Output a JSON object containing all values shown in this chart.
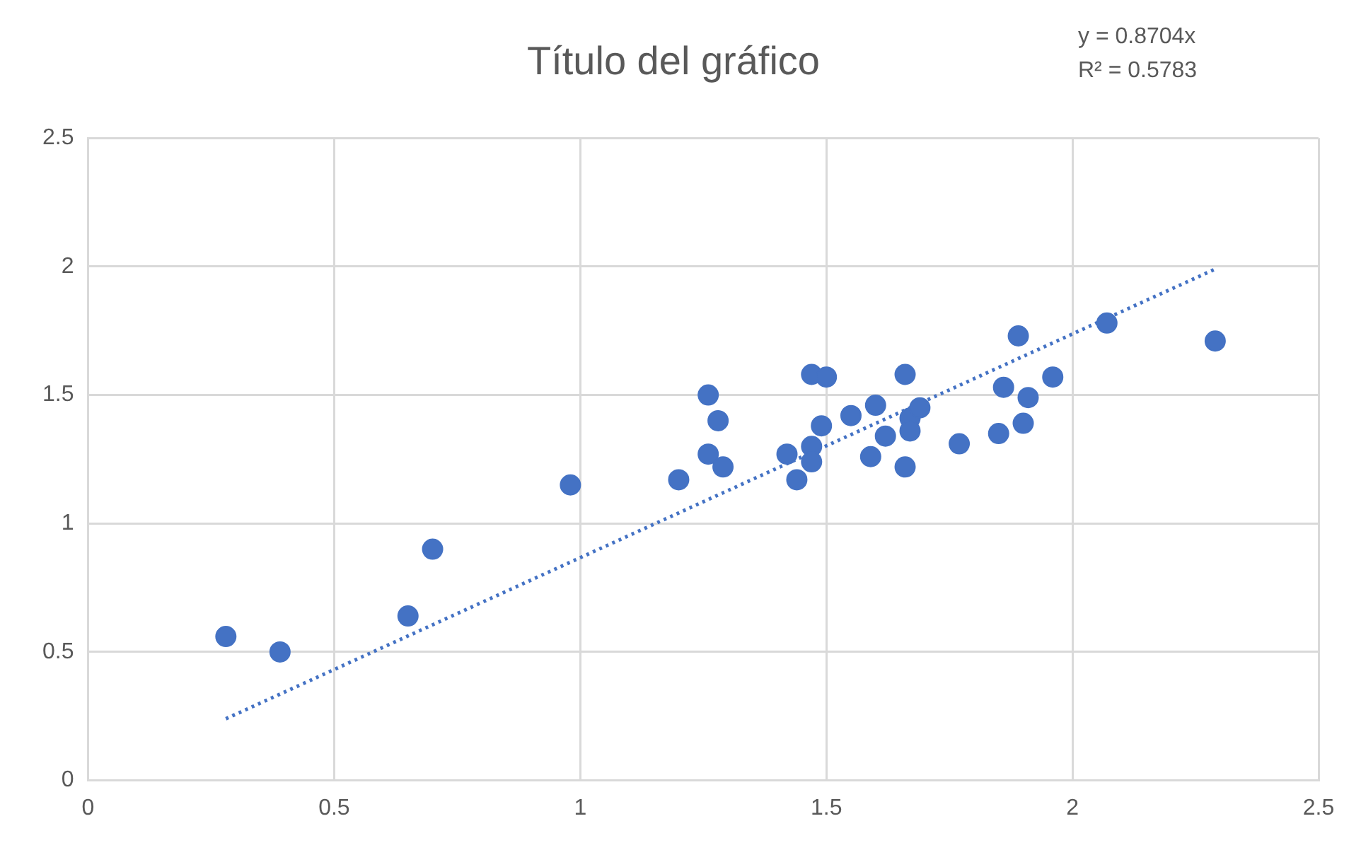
{
  "chart_data": {
    "type": "scatter",
    "title": "Título del gráfico",
    "annotations": [
      "y = 0.8704x",
      "R² = 0.5783"
    ],
    "xlim": [
      0,
      2.5
    ],
    "xticks": [
      0,
      0.5,
      1,
      1.5,
      2,
      2.5
    ],
    "ylim": [
      0,
      2.5
    ],
    "yticks": [
      0,
      0.5,
      1,
      1.5,
      2,
      2.5
    ],
    "grid": true,
    "legend": false,
    "marker": "circle",
    "series": [
      {
        "type": "scatter",
        "color": "#4472c4",
        "x": [
          0.28,
          0.39,
          0.65,
          0.7,
          0.98,
          1.2,
          1.26,
          1.28,
          1.26,
          1.29,
          1.42,
          1.44,
          1.47,
          1.5,
          1.47,
          1.47,
          1.49,
          1.55,
          1.6,
          1.59,
          1.62,
          1.66,
          1.66,
          1.67,
          1.67,
          1.69,
          1.77,
          1.85,
          1.86,
          1.89,
          1.91,
          1.9,
          1.96,
          2.07,
          2.29
        ],
        "values": [
          0.56,
          0.5,
          0.64,
          0.9,
          1.15,
          1.17,
          1.5,
          1.4,
          1.27,
          1.22,
          1.27,
          1.17,
          1.58,
          1.57,
          1.3,
          1.24,
          1.38,
          1.42,
          1.46,
          1.26,
          1.34,
          1.58,
          1.22,
          1.41,
          1.36,
          1.45,
          1.31,
          1.35,
          1.53,
          1.73,
          1.49,
          1.39,
          1.57,
          1.78,
          1.71
        ]
      },
      {
        "type": "line",
        "color": "#4472c4",
        "x": [
          0.28,
          2.29
        ],
        "values": [
          0.24,
          1.99
        ],
        "line_style": "dotted",
        "marker": "none"
      }
    ]
  }
}
